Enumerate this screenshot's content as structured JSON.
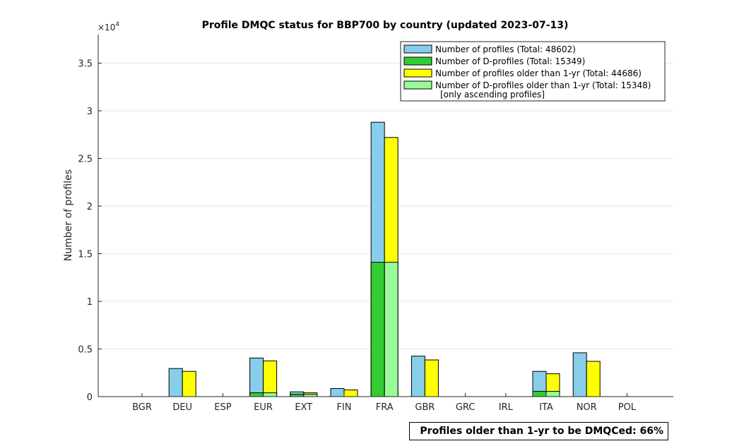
{
  "chart_data": {
    "type": "bar",
    "title": "Profile DMQC status for BBP700 by country (updated 2023-07-13)",
    "ylabel": "Number of profiles",
    "xlabel": "",
    "y_exponent_label": "×10",
    "y_exponent_power": "4",
    "ylim": [
      0,
      38000
    ],
    "yticks": [
      0,
      5000,
      10000,
      15000,
      20000,
      25000,
      30000,
      35000
    ],
    "ytick_labels": [
      "0",
      "0.5",
      "1",
      "1.5",
      "2",
      "2.5",
      "3",
      "3.5"
    ],
    "grid": true,
    "legend_position": "top-right",
    "categories": [
      "BGR",
      "DEU",
      "ESP",
      "EUR",
      "EXT",
      "FIN",
      "FRA",
      "GBR",
      "GRC",
      "IRL",
      "ITA",
      "NOR",
      "POL"
    ],
    "series": [
      {
        "name": "Number of profiles (Total: 48602)",
        "color": "#87ceeb",
        "values": [
          0,
          2950,
          0,
          4050,
          500,
          850,
          28800,
          4250,
          0,
          0,
          2650,
          4600,
          0
        ]
      },
      {
        "name": "Number of D-profiles (Total: 15349)",
        "color": "#32cd32",
        "values": [
          0,
          0,
          0,
          400,
          250,
          0,
          14100,
          0,
          0,
          0,
          550,
          0,
          0
        ]
      },
      {
        "name": "Number of profiles older than 1-yr (Total: 44686)",
        "color": "#ffff00",
        "values": [
          0,
          2650,
          0,
          3750,
          400,
          700,
          27200,
          3850,
          0,
          0,
          2400,
          3700,
          0
        ]
      },
      {
        "name": "Number of D-profiles older than 1-yr (Total: 15348)",
        "color": "#98fb98",
        "values": [
          0,
          0,
          0,
          400,
          250,
          0,
          14100,
          0,
          0,
          0,
          550,
          0,
          0
        ]
      }
    ],
    "legend_note": "[only ascending profiles]",
    "footer": "Profiles older than 1-yr to be DMQCed: 66%"
  }
}
